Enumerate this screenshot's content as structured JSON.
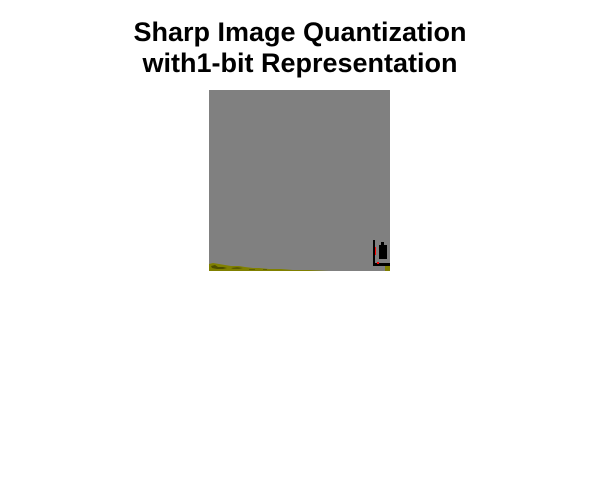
{
  "figure": {
    "title_line_1": "Sharp Image Quantization",
    "title_line_2": "with1-bit Representation"
  },
  "image": {
    "content": "quantized-photo",
    "colors": {
      "background": "#ffffff",
      "sky": "#808080",
      "ground": "#808000",
      "figure": "#000000",
      "accent": "#ff0000"
    }
  }
}
